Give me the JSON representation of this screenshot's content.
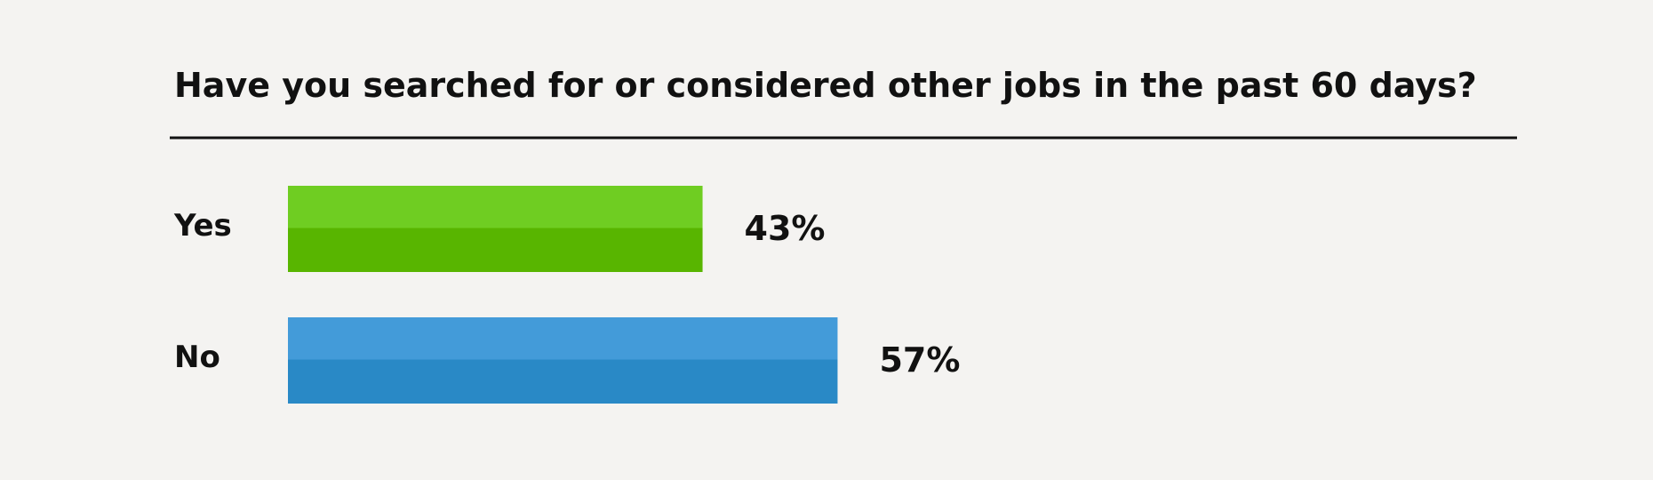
{
  "chart_data": {
    "type": "bar",
    "orientation": "horizontal",
    "title": "Have you searched for or considered other jobs in the past 60 days?",
    "categories": [
      "Yes",
      "No"
    ],
    "values": [
      43,
      57
    ],
    "value_labels": [
      "43%",
      "57%"
    ],
    "colors": [
      "#58b500",
      "#2989c6"
    ],
    "highlight_colors": [
      "#6fcd22",
      "#439bd9"
    ]
  }
}
